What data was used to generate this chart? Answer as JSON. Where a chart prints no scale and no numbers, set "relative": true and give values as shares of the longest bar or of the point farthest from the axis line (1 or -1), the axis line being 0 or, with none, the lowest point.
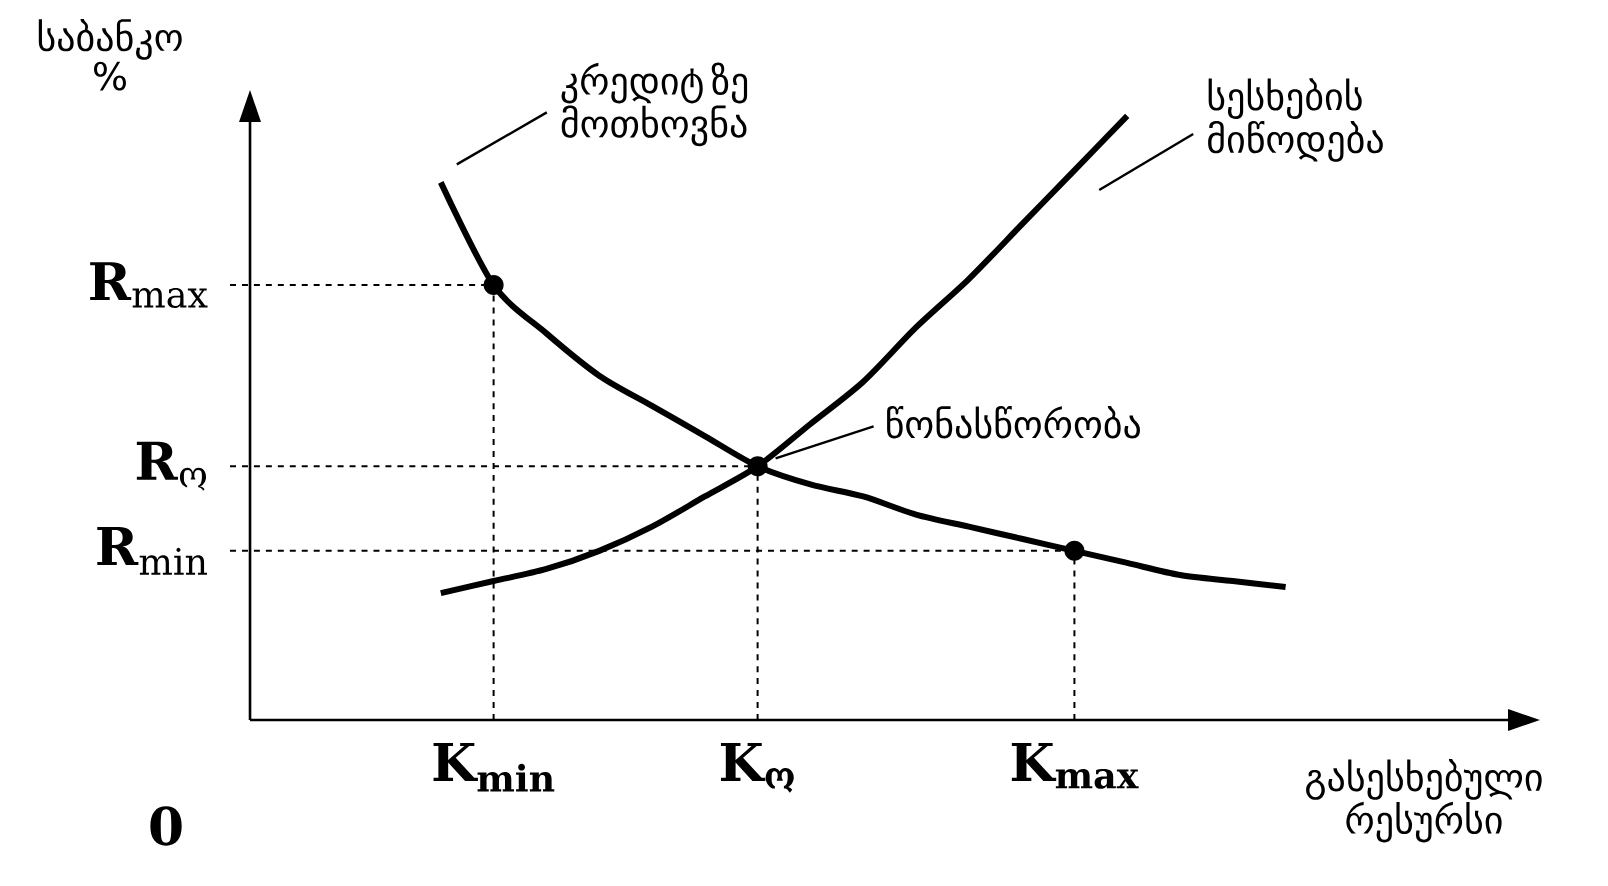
{
  "chart_data": {
    "type": "line",
    "relative": true,
    "xlabel": "გასესხებული რესურსი",
    "ylabel": "საბანკო %",
    "categories": [
      null,
      null,
      "K$_{min}$",
      null,
      null,
      null,
      null,
      "K$_{ო}$",
      null,
      null,
      null,
      null,
      null,
      "K$_{max}$",
      null,
      null,
      null,
      null
    ],
    "series": [
      {
        "name": "კრედიტ ზე მოთხოვნა",
        "color": "#000000",
        "values": [
          null,
          0.89,
          0.72,
          0.64,
          0.57,
          0.52,
          0.47,
          0.42,
          0.39,
          0.37,
          0.34,
          0.32,
          0.3,
          0.28,
          0.26,
          0.24,
          0.23,
          0.22
        ]
      },
      {
        "name": "სესხების მიწოდება",
        "color": "#000000",
        "values": [
          null,
          0.21,
          0.23,
          0.25,
          0.28,
          0.32,
          0.37,
          0.42,
          0.49,
          0.56,
          0.65,
          0.73,
          0.82,
          0.91,
          1,
          null,
          null,
          null
        ]
      }
    ],
    "ref_lines": [
      {
        "axis": "y",
        "value": 0.72,
        "label": "**R**$_{max}$",
        "line_style": "dashed"
      },
      {
        "axis": "y",
        "value": 0.42,
        "label": "**R**$_{ო}$",
        "line_style": "dashed"
      },
      {
        "axis": "y",
        "value": 0.28,
        "label": "**R**$_{min}$",
        "line_style": "dashed"
      },
      {
        "axis": "x",
        "value": "K$_{min}$",
        "line_style": "dashed"
      },
      {
        "axis": "x",
        "value": "K$_{ო}$",
        "line_style": "dashed"
      },
      {
        "axis": "x",
        "value": "K$_{max}$",
        "line_style": "dashed"
      }
    ],
    "annotations": [
      "0",
      "წონასწორობა"
    ],
    "marker": "none",
    "line_style": "solid"
  }
}
